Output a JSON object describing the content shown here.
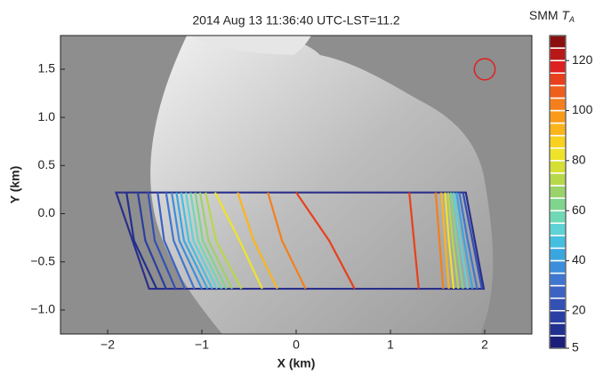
{
  "chart_data": {
    "type": "contour",
    "title": "2014 Aug 13 11:36:40 UTC-LST=11.2",
    "x_label": "X (km)",
    "y_label": "Y (km)",
    "xlim": [
      -2.5,
      2.5
    ],
    "ylim": [
      -1.25,
      1.85
    ],
    "xticks": [
      {
        "value": -2,
        "label": "−2"
      },
      {
        "value": -1,
        "label": "−1"
      },
      0,
      1,
      2
    ],
    "yticks": [
      {
        "value": -1.0,
        "label": "−1.0"
      },
      {
        "value": -0.5,
        "label": "−0.5"
      },
      {
        "value": 0.0,
        "label": "0.0"
      },
      {
        "value": 0.5,
        "label": "0.5"
      },
      {
        "value": 1.0,
        "label": "1.0"
      },
      {
        "value": 1.5,
        "label": "1.5"
      }
    ],
    "swath": {
      "x": [
        -1.91,
        1.8,
        1.99,
        -1.56
      ],
      "y": [
        0.22,
        0.22,
        -0.78,
        -0.78
      ],
      "color": "#2a2f8a"
    },
    "beam": {
      "x": 2.0,
      "y": 1.5,
      "radius": 0.11,
      "color": "#e02020"
    },
    "colorbar": {
      "label": "SMM",
      "symbol": "T",
      "subscript": "A",
      "lim": [
        5,
        130
      ],
      "ticks": [
        5,
        20,
        40,
        60,
        80,
        100,
        120
      ],
      "levels": [
        5,
        10,
        15,
        20,
        25,
        30,
        35,
        40,
        45,
        50,
        55,
        60,
        65,
        70,
        75,
        80,
        85,
        90,
        95,
        100,
        105,
        110,
        115,
        120,
        125,
        130
      ],
      "colors": [
        "#1b1f7a",
        "#22308f",
        "#2a3fa3",
        "#3350b5",
        "#3c62c4",
        "#3f76d0",
        "#3b8edb",
        "#3aa6e0",
        "#45bfe0",
        "#5fd2d6",
        "#6fd8b4",
        "#7fd58c",
        "#9ad36a",
        "#b7d84a",
        "#d5df34",
        "#efe32a",
        "#f9d21f",
        "#fbb51b",
        "#f99a1a",
        "#f47f1c",
        "#ee5f1c",
        "#e8401c",
        "#dd2020",
        "#b81818",
        "#8a1010"
      ]
    },
    "contours": [
      {
        "level": 10,
        "x": [
          -1.8,
          -1.72,
          -1.48
        ],
        "y": [
          0.22,
          -0.28,
          -0.78
        ]
      },
      {
        "level": 15,
        "x": [
          -1.68,
          -1.6,
          -1.38
        ],
        "y": [
          0.22,
          -0.28,
          -0.78
        ]
      },
      {
        "level": 20,
        "x": [
          -1.57,
          -1.5,
          -1.28
        ],
        "y": [
          0.22,
          -0.28,
          -0.78
        ]
      },
      {
        "level": 25,
        "x": [
          -1.47,
          -1.4,
          -1.18
        ],
        "y": [
          0.22,
          -0.28,
          -0.78
        ]
      },
      {
        "level": 30,
        "x": [
          -1.38,
          -1.3,
          -1.08
        ],
        "y": [
          0.22,
          -0.28,
          -0.78
        ]
      },
      {
        "level": 35,
        "x": [
          -1.32,
          -1.24,
          -1.0
        ],
        "y": [
          0.22,
          -0.28,
          -0.78
        ]
      },
      {
        "level": 40,
        "x": [
          -1.27,
          -1.19,
          -0.94
        ],
        "y": [
          0.22,
          -0.28,
          -0.78
        ]
      },
      {
        "level": 45,
        "x": [
          -1.22,
          -1.14,
          -0.89
        ],
        "y": [
          0.22,
          -0.28,
          -0.78
        ]
      },
      {
        "level": 50,
        "x": [
          -1.17,
          -1.09,
          -0.84
        ],
        "y": [
          0.22,
          -0.28,
          -0.78
        ]
      },
      {
        "level": 55,
        "x": [
          -1.12,
          -1.04,
          -0.79
        ],
        "y": [
          0.22,
          -0.28,
          -0.78
        ]
      },
      {
        "level": 60,
        "x": [
          -1.07,
          -0.99,
          -0.74
        ],
        "y": [
          0.22,
          -0.28,
          -0.78
        ]
      },
      {
        "level": 65,
        "x": [
          -1.02,
          -0.93,
          -0.68
        ],
        "y": [
          0.22,
          -0.28,
          -0.78
        ]
      },
      {
        "level": 70,
        "x": [
          -0.96,
          -0.85,
          -0.58
        ],
        "y": [
          0.22,
          -0.28,
          -0.78
        ]
      },
      {
        "level": 80,
        "x": [
          -0.86,
          -0.6,
          -0.36
        ],
        "y": [
          0.22,
          -0.28,
          -0.78
        ]
      },
      {
        "level": 90,
        "x": [
          -0.62,
          -0.45,
          -0.2
        ],
        "y": [
          0.22,
          -0.28,
          -0.78
        ]
      },
      {
        "level": 100,
        "x": [
          -0.3,
          -0.15,
          0.1
        ],
        "y": [
          0.22,
          -0.28,
          -0.78
        ]
      },
      {
        "level": 110,
        "x": [
          0.0,
          0.35,
          0.62
        ],
        "y": [
          0.22,
          -0.28,
          -0.78
        ]
      },
      {
        "level": 110,
        "x": [
          1.2,
          1.25,
          1.3
        ],
        "y": [
          0.22,
          -0.28,
          -0.78
        ]
      },
      {
        "level": 100,
        "x": [
          1.48,
          1.52,
          1.56
        ],
        "y": [
          0.22,
          -0.28,
          -0.78
        ]
      },
      {
        "level": 90,
        "x": [
          1.54,
          1.58,
          1.62
        ],
        "y": [
          0.22,
          -0.28,
          -0.78
        ]
      },
      {
        "level": 80,
        "x": [
          1.58,
          1.62,
          1.67
        ],
        "y": [
          0.22,
          -0.28,
          -0.78
        ]
      },
      {
        "level": 70,
        "x": [
          1.61,
          1.66,
          1.72
        ],
        "y": [
          0.22,
          -0.28,
          -0.78
        ]
      },
      {
        "level": 60,
        "x": [
          1.64,
          1.7,
          1.77
        ],
        "y": [
          0.22,
          -0.28,
          -0.78
        ]
      },
      {
        "level": 50,
        "x": [
          1.67,
          1.74,
          1.82
        ],
        "y": [
          0.22,
          -0.28,
          -0.78
        ]
      },
      {
        "level": 40,
        "x": [
          1.7,
          1.78,
          1.87
        ],
        "y": [
          0.22,
          -0.28,
          -0.78
        ]
      },
      {
        "level": 30,
        "x": [
          1.73,
          1.82,
          1.92
        ],
        "y": [
          0.22,
          -0.28,
          -0.78
        ]
      },
      {
        "level": 20,
        "x": [
          1.77,
          1.87,
          1.97
        ],
        "y": [
          0.22,
          -0.28,
          -0.78
        ]
      }
    ]
  }
}
